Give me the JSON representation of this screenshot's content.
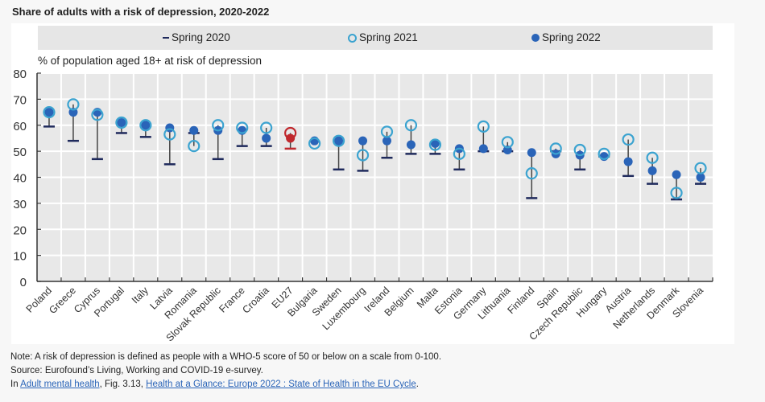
{
  "chart_data": {
    "type": "scatter",
    "title": "Share of adults with a risk of depression, 2020-2022",
    "ylabel": "% of population aged 18+ at risk of depression",
    "xlabel": "",
    "ylim": [
      0,
      80
    ],
    "yticks": [
      0,
      10,
      20,
      30,
      40,
      50,
      60,
      70,
      80
    ],
    "grid": true,
    "legend_position": "top",
    "legend": [
      {
        "name": "Spring 2020",
        "marker": "dash",
        "color": "#1f2a5c"
      },
      {
        "name": "Spring 2021",
        "marker": "open-circle",
        "color": "#3ba3d0"
      },
      {
        "name": "Spring 2022",
        "marker": "filled-circle",
        "color": "#2a64b8"
      }
    ],
    "highlight": {
      "category": "EU27",
      "color": "#c0282d"
    },
    "categories": [
      "Poland",
      "Greece",
      "Cyprus",
      "Portugal",
      "Italy",
      "Latvia",
      "Romania",
      "Slovak Republic",
      "France",
      "Croatia",
      "EU27",
      "Bulgaria",
      "Sweden",
      "Luxembourg",
      "Ireland",
      "Belgium",
      "Malta",
      "Estonia",
      "Germany",
      "Lithuania",
      "Finland",
      "Spain",
      "Czech Republic",
      "Hungary",
      "Austria",
      "Netherlands",
      "Denmark",
      "Slovenia"
    ],
    "series": [
      {
        "name": "Spring 2020",
        "values": [
          59.5,
          54,
          47,
          57,
          55.5,
          45,
          57,
          47,
          52,
          52,
          51,
          null,
          43,
          42.5,
          47.5,
          49,
          49,
          43,
          50,
          50,
          32,
          50,
          43,
          48,
          40.5,
          37.5,
          31.5,
          37.5
        ]
      },
      {
        "name": "Spring 2021",
        "values": [
          65,
          68,
          64,
          61,
          60,
          56.5,
          52,
          60,
          59,
          59,
          57,
          53,
          54,
          48.5,
          57.5,
          60,
          52.5,
          49,
          59.5,
          53.5,
          41.5,
          51,
          50.5,
          49,
          54.5,
          47.5,
          34,
          43.5
        ]
      },
      {
        "name": "Spring 2022",
        "values": [
          65,
          65,
          65,
          61,
          60,
          59,
          58,
          58,
          58,
          55,
          55,
          54,
          54,
          54,
          54,
          52.5,
          53,
          51,
          51,
          50.5,
          49.5,
          49,
          48.5,
          48,
          46,
          42.5,
          41,
          40
        ]
      }
    ]
  },
  "footnotes": {
    "note": "Note: A risk of depression is defined as people with a WHO-5 score of 50 or below on a scale from 0-100.",
    "source": "Source: Eurofound’s Living, Working and COVID-19 e-survey.",
    "in_prefix": "In ",
    "link1": "Adult mental health",
    "middle": ", Fig. 3.13, ",
    "link2": "Health at a Glance: Europe 2022 : State of Health in the EU Cycle",
    "suffix": "."
  }
}
